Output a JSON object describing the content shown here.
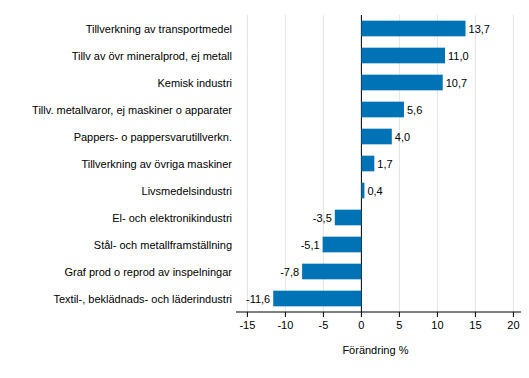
{
  "chart_data": {
    "type": "bar",
    "orientation": "horizontal",
    "x_label": "Förändring %",
    "categories": [
      "Tillverkning av transportmedel",
      "Tillv av övr mineralprod, ej metall",
      "Kemisk industri",
      "Tillv. metallvaror, ej maskiner o apparater",
      "Pappers- o pappersvarutillverkn.",
      "Tillverkning av övriga maskiner",
      "Livsmedelsindustri",
      "El- och elektronikindustri",
      "Stål- och metallframställning",
      "Graf prod o reprod av inspelningar",
      "Textil-, beklädnads- och läderindustri"
    ],
    "values": [
      13.7,
      11.0,
      10.7,
      5.6,
      4.0,
      1.7,
      0.4,
      -3.5,
      -5.1,
      -7.8,
      -11.6
    ],
    "value_labels": [
      "13,7",
      "11,0",
      "10,7",
      "5,6",
      "4,0",
      "1,7",
      "0,4",
      "-3,5",
      "-5,1",
      "-7,8",
      "-11,6"
    ],
    "color": "#0073b7",
    "xlim": [
      -16.5,
      21
    ],
    "xticks": [
      -15,
      -10,
      -5,
      0,
      5,
      10,
      15,
      20
    ],
    "grid": true,
    "data_labels": true
  }
}
